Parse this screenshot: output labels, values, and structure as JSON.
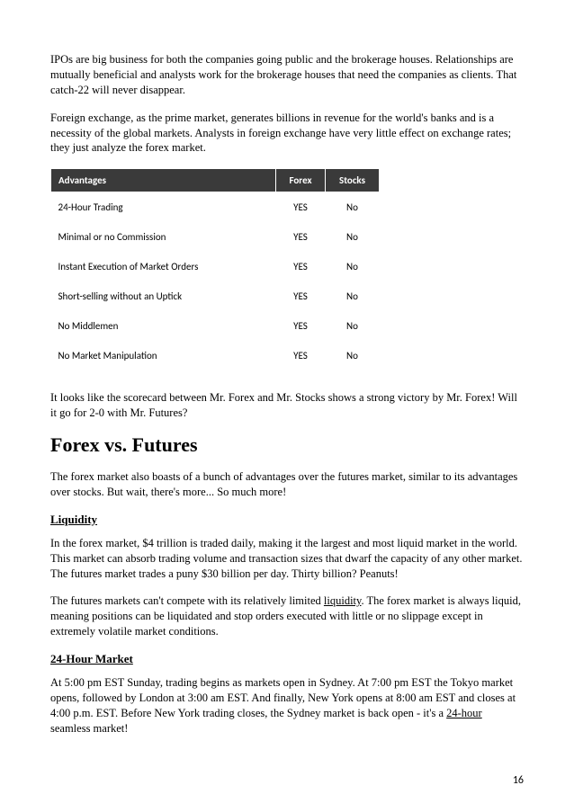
{
  "paragraphs": {
    "intro1": "IPOs are big business for both the companies going public and the brokerage houses. Relationships are mutually beneficial and analysts work for the brokerage houses that need the companies as clients. That catch-22 will never disappear.",
    "intro2": "Foreign exchange, as the prime market, generates billions in revenue for the world's banks and is a necessity of the global markets. Analysts in foreign exchange have very little effect on exchange rates; they just analyze the forex market.",
    "afterTable": "It looks like the scorecard between Mr. Forex and Mr. Stocks shows a strong victory by Mr. Forex! Will it go for 2-0 with Mr. Futures?",
    "futuresIntro": "The forex market also boasts of a bunch of advantages over the futures market, similar to its advantages over stocks. But wait, there's more... So much more!",
    "liquidity1": "In the forex market, $4 trillion is traded daily, making it the largest and most liquid market in the world. This market can absorb trading volume and transaction sizes that dwarf the capacity of any other market. The futures market trades a puny $30 billion per day. Thirty billion? Peanuts!",
    "liquidity2a": "The futures markets can't compete with its relatively limited ",
    "liquidity2b": ". The forex market is always liquid, meaning positions can be liquidated and stop orders executed with little or no slippage except in extremely volatile market conditions.",
    "hours1a": "At 5:00 pm EST Sunday, trading begins as markets open in Sydney. At 7:00 pm EST the Tokyo market opens, followed by London at 3:00 am EST. And finally, New York opens at 8:00 am EST and closes at 4:00 p.m. EST. Before New York trading closes, the Sydney market is back open - it's a ",
    "hours1b": " seamless market!"
  },
  "links": {
    "liquidity": "liquidity",
    "twentyfour": "24-hour"
  },
  "table": {
    "headers": {
      "advantages": "Advantages",
      "forex": "Forex",
      "stocks": "Stocks"
    },
    "rows": [
      {
        "adv": "24-Hour Trading",
        "fx": "YES",
        "st": "No"
      },
      {
        "adv": "Minimal or no Commission",
        "fx": "YES",
        "st": "No"
      },
      {
        "adv": "Instant Execution of Market Orders",
        "fx": "YES",
        "st": "No"
      },
      {
        "adv": "Short-selling without an Uptick",
        "fx": "YES",
        "st": "No"
      },
      {
        "adv": "No Middlemen",
        "fx": "YES",
        "st": "No"
      },
      {
        "adv": "No Market Manipulation",
        "fx": "YES",
        "st": "No"
      }
    ]
  },
  "headings": {
    "forexFutures": "Forex vs. Futures",
    "liquidity": "Liquidity",
    "hours": "24-Hour Market"
  },
  "pageNumber": "16"
}
